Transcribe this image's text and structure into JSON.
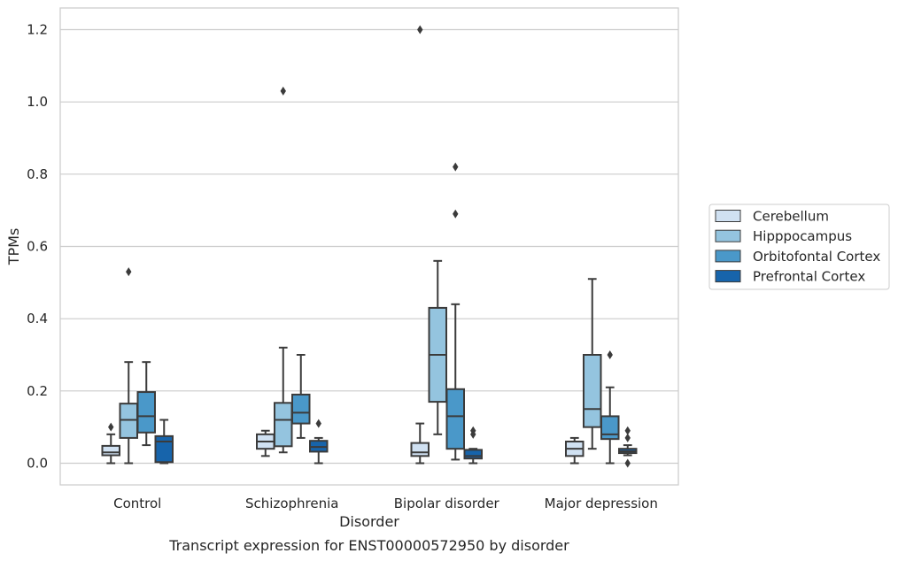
{
  "chart_data": {
    "type": "box",
    "xlabel": "Disorder",
    "ylabel": "TPMs",
    "caption": "Transcript expression for ENST00000572950 by disorder",
    "categories": [
      "Control",
      "Schizophrenia",
      "Bipolar disorder",
      "Major depression"
    ],
    "ylim": [
      -0.06,
      1.26
    ],
    "yticks": [
      0.0,
      0.2,
      0.4,
      0.6,
      0.8,
      1.0,
      1.2
    ],
    "ytick_labels": [
      "0.0",
      "0.2",
      "0.4",
      "0.6",
      "0.8",
      "1.0",
      "1.2"
    ],
    "grid": "horizontal",
    "legend_position": "right",
    "series": [
      {
        "name": "Cerebellum",
        "color": "#d0e1f2",
        "boxes": [
          {
            "category": "Control",
            "whisker_low": 0.0,
            "q1": 0.022,
            "median": 0.03,
            "q3": 0.048,
            "whisker_high": 0.08,
            "outliers": [
              0.1
            ]
          },
          {
            "category": "Schizophrenia",
            "whisker_low": 0.02,
            "q1": 0.04,
            "median": 0.06,
            "q3": 0.08,
            "whisker_high": 0.09,
            "outliers": []
          },
          {
            "category": "Bipolar disorder",
            "whisker_low": 0.0,
            "q1": 0.02,
            "median": 0.03,
            "q3": 0.056,
            "whisker_high": 0.11,
            "outliers": [
              1.2
            ]
          },
          {
            "category": "Major depression",
            "whisker_low": 0.0,
            "q1": 0.02,
            "median": 0.04,
            "q3": 0.06,
            "whisker_high": 0.07,
            "outliers": []
          }
        ]
      },
      {
        "name": "Hipppocampus",
        "color": "#94c4df",
        "boxes": [
          {
            "category": "Control",
            "whisker_low": 0.0,
            "q1": 0.07,
            "median": 0.12,
            "q3": 0.165,
            "whisker_high": 0.28,
            "outliers": [
              0.53
            ]
          },
          {
            "category": "Schizophrenia",
            "whisker_low": 0.03,
            "q1": 0.047,
            "median": 0.12,
            "q3": 0.167,
            "whisker_high": 0.32,
            "outliers": [
              1.03
            ]
          },
          {
            "category": "Bipolar disorder",
            "whisker_low": 0.08,
            "q1": 0.17,
            "median": 0.3,
            "q3": 0.43,
            "whisker_high": 0.56,
            "outliers": []
          },
          {
            "category": "Major depression",
            "whisker_low": 0.04,
            "q1": 0.1,
            "median": 0.15,
            "q3": 0.3,
            "whisker_high": 0.51,
            "outliers": []
          }
        ]
      },
      {
        "name": "Orbitofontal Cortex",
        "color": "#4a98c9",
        "boxes": [
          {
            "category": "Control",
            "whisker_low": 0.05,
            "q1": 0.085,
            "median": 0.13,
            "q3": 0.197,
            "whisker_high": 0.28,
            "outliers": []
          },
          {
            "category": "Schizophrenia",
            "whisker_low": 0.07,
            "q1": 0.11,
            "median": 0.14,
            "q3": 0.19,
            "whisker_high": 0.3,
            "outliers": []
          },
          {
            "category": "Bipolar disorder",
            "whisker_low": 0.01,
            "q1": 0.04,
            "median": 0.13,
            "q3": 0.205,
            "whisker_high": 0.44,
            "outliers": [
              0.82,
              0.69
            ]
          },
          {
            "category": "Major depression",
            "whisker_low": 0.0,
            "q1": 0.067,
            "median": 0.08,
            "q3": 0.13,
            "whisker_high": 0.21,
            "outliers": [
              0.3
            ]
          }
        ]
      },
      {
        "name": "Prefrontal Cortex",
        "color": "#1764ab",
        "boxes": [
          {
            "category": "Control",
            "whisker_low": 0.0,
            "q1": 0.003,
            "median": 0.06,
            "q3": 0.075,
            "whisker_high": 0.12,
            "outliers": []
          },
          {
            "category": "Schizophrenia",
            "whisker_low": 0.0,
            "q1": 0.032,
            "median": 0.045,
            "q3": 0.062,
            "whisker_high": 0.07,
            "outliers": [
              0.11
            ]
          },
          {
            "category": "Bipolar disorder",
            "whisker_low": 0.0,
            "q1": 0.013,
            "median": 0.02,
            "q3": 0.037,
            "whisker_high": 0.04,
            "outliers": [
              0.09,
              0.08
            ]
          },
          {
            "category": "Major depression",
            "whisker_low": 0.022,
            "q1": 0.028,
            "median": 0.033,
            "q3": 0.04,
            "whisker_high": 0.05,
            "outliers": [
              0.09,
              0.07,
              0.0
            ]
          }
        ]
      }
    ]
  }
}
